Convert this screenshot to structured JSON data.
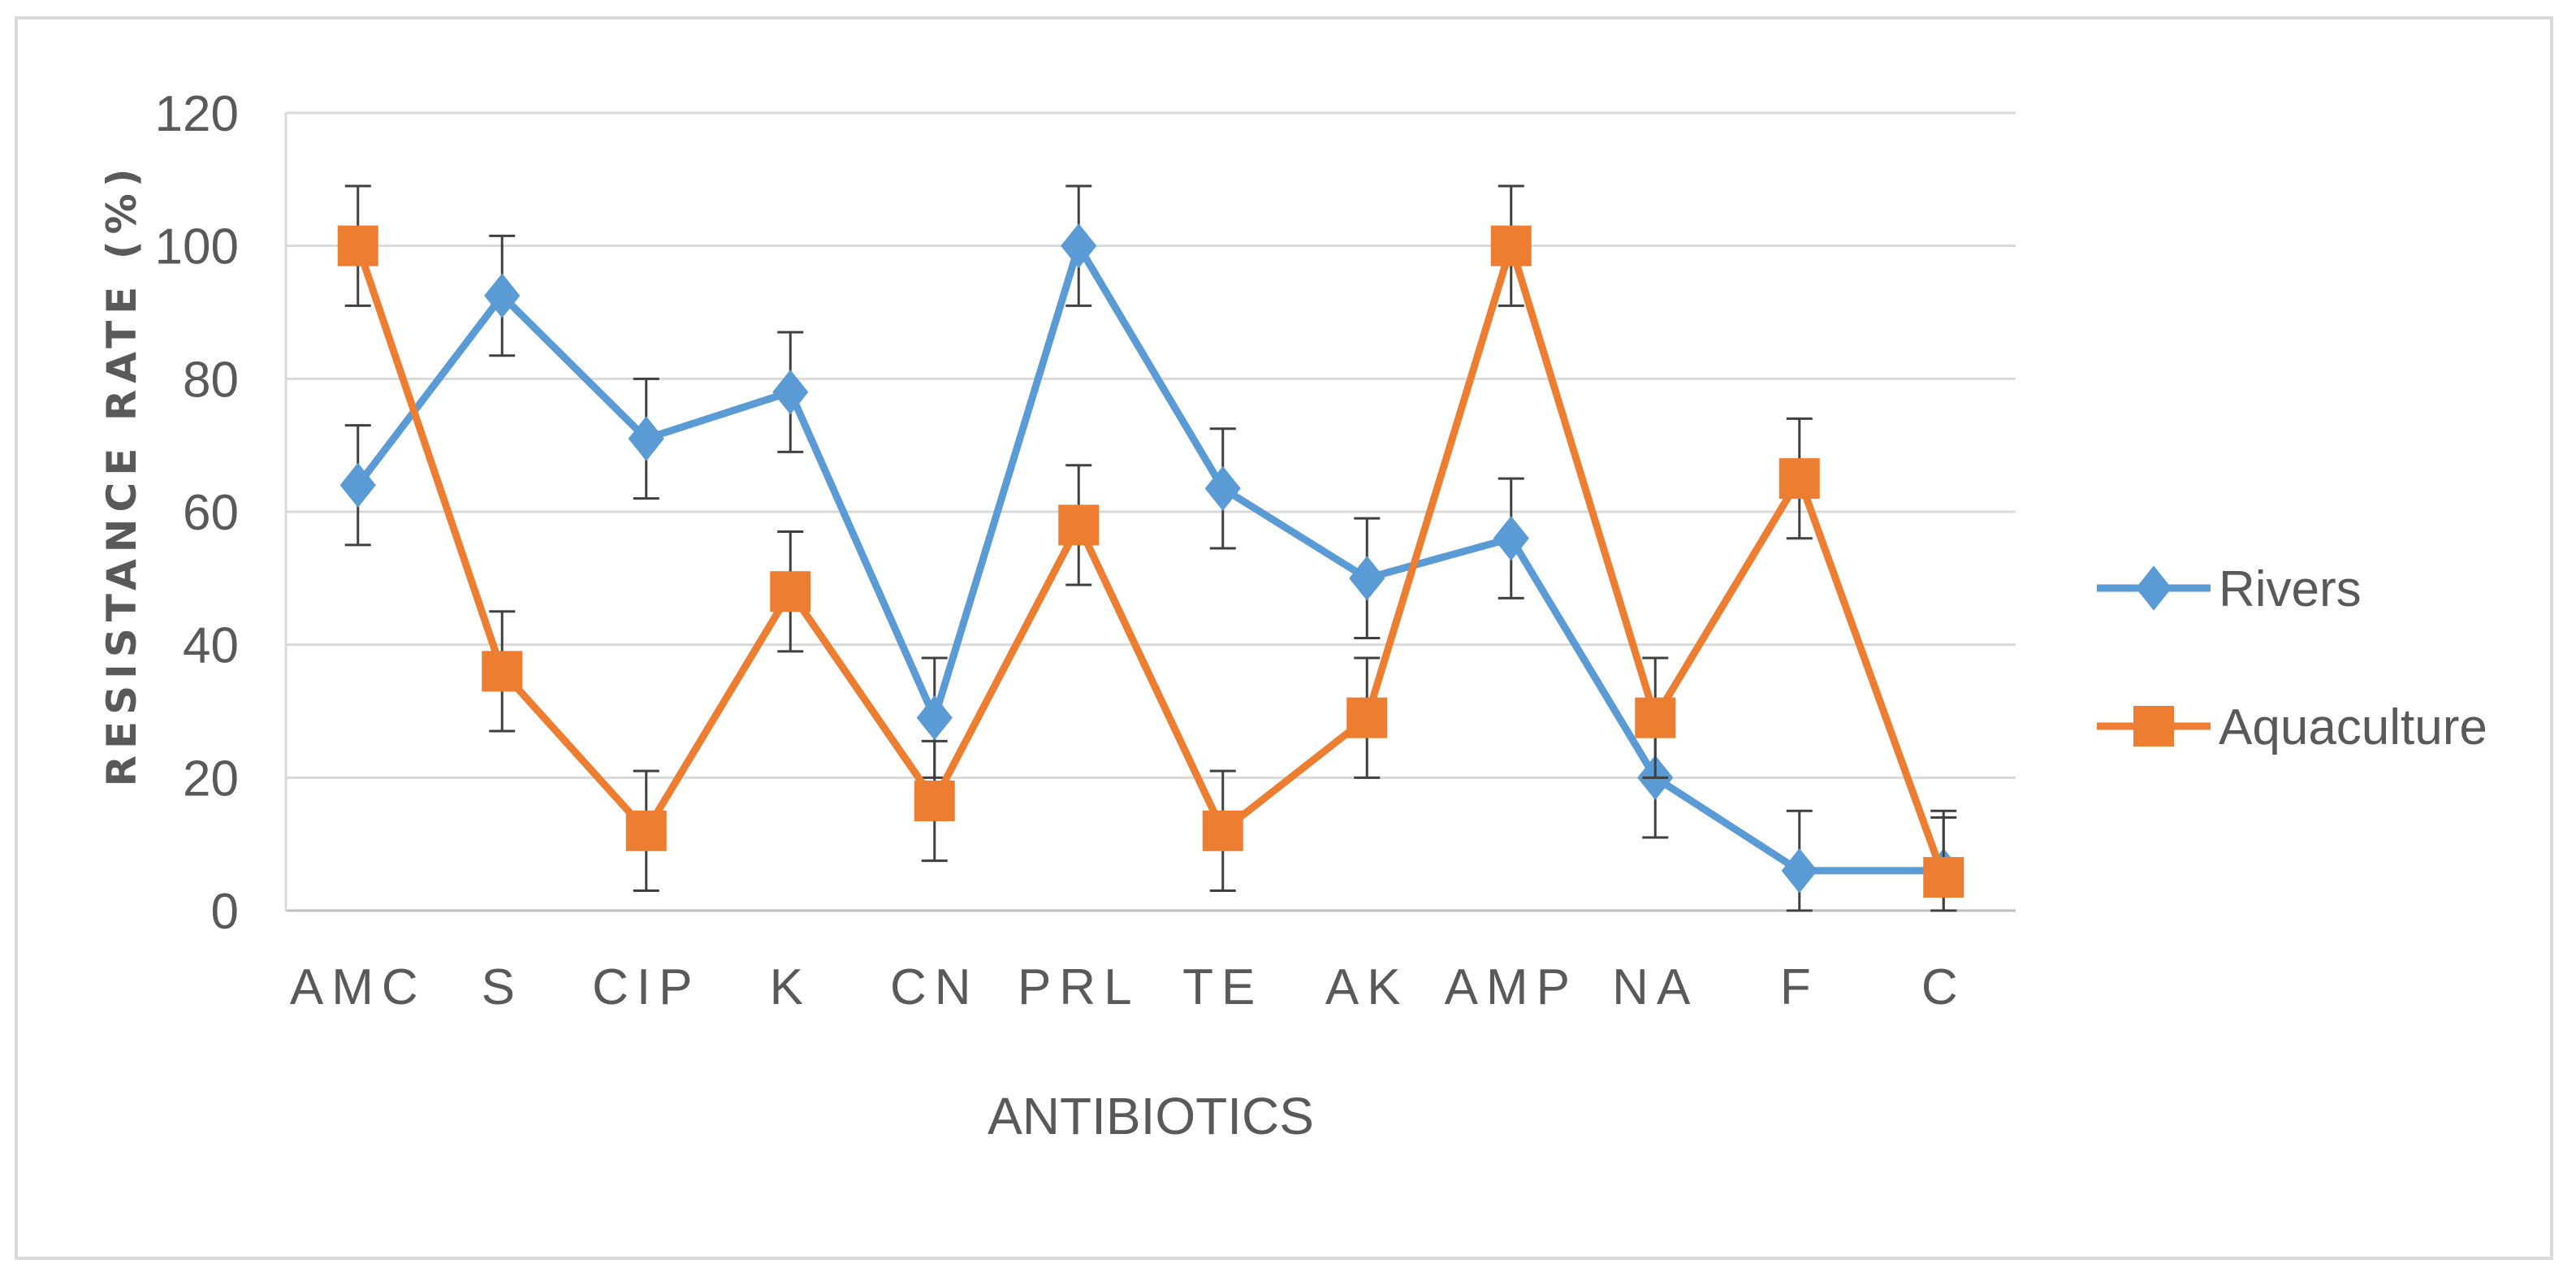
{
  "chart_data": {
    "type": "line",
    "title": "",
    "xlabel": "ANTIBIOTICS",
    "ylabel": "RESISTANCE RATE (%)",
    "ylim": [
      0,
      120
    ],
    "yticks": [
      0,
      20,
      40,
      60,
      80,
      100,
      120
    ],
    "grid": "horizontal",
    "legend_position": "right",
    "categories": [
      "AMC",
      "S",
      "CIP",
      "K",
      "CN",
      "PRL",
      "TE",
      "AK",
      "AMP",
      "NA",
      "F",
      "C"
    ],
    "series": [
      {
        "name": "Rivers",
        "marker": "diamond",
        "color": "#5B9BD5",
        "values": [
          64,
          92.5,
          71,
          78,
          29,
          100,
          63.5,
          50,
          56,
          20,
          6,
          6
        ],
        "error": [
          9,
          9,
          9,
          9,
          9,
          9,
          9,
          9,
          9,
          9,
          9,
          9
        ]
      },
      {
        "name": "Aquaculture",
        "marker": "square",
        "color": "#ED7D31",
        "values": [
          100,
          36,
          12,
          48,
          16.5,
          58,
          12,
          29,
          100,
          29,
          65,
          5
        ],
        "error": [
          9,
          9,
          9,
          9,
          9,
          9,
          9,
          9,
          9,
          9,
          9,
          9
        ]
      }
    ]
  }
}
